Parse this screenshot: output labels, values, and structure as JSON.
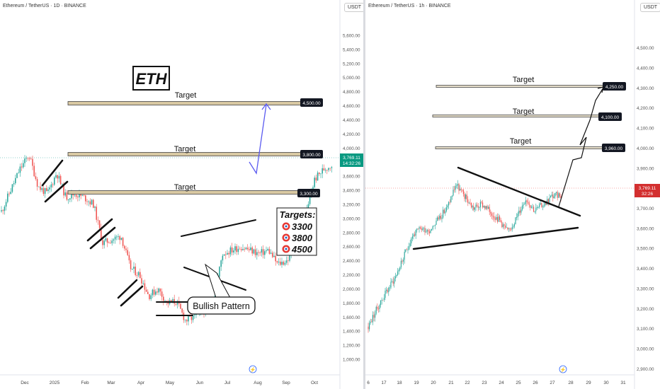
{
  "colors": {
    "up": "#26a69a",
    "down": "#ef5350",
    "target_fill": "#d9c9a3",
    "projection": "#5b5bf0",
    "green_label": "#089981",
    "red_label": "#d32f2f"
  },
  "left": {
    "title": "Ethereum / TetherUS · 1D · BINANCE",
    "currency": "USDT",
    "eth_label": "ETH",
    "target_label": "Target",
    "targets_heading": "Targets:",
    "targets_list": [
      "3300",
      "3800",
      "4500"
    ],
    "bullish_label": "Bullish Pattern",
    "price_label": "3,769.11",
    "countdown": "14:32:26",
    "target_prices": [
      "4,500.00",
      "3,800.00",
      "3,300.00"
    ],
    "lightning_icon": "⚡"
  },
  "right": {
    "title": "Ethereum / TetherUS · 1h · BINANCE",
    "currency": "USDT",
    "target_label": "Target",
    "price_label": "3,769.11",
    "countdown": "32:26",
    "target_prices": [
      "4,250.00",
      "4,100.00",
      "3,960.00"
    ],
    "lightning_icon": "⚡"
  },
  "chart_data": [
    {
      "type": "line",
      "title": "Ethereum / TetherUS · 1D · BINANCE",
      "interval": "1D",
      "x_ticks": [
        "Dec",
        "2025",
        "Feb",
        "Mar",
        "Apr",
        "May",
        "Jun",
        "Jul",
        "Aug",
        "Sep",
        "Oct"
      ],
      "y_ticks": [
        "1,000.00",
        "1,200.00",
        "1,400.00",
        "1,600.00",
        "1,800.00",
        "2,000.00",
        "2,200.00",
        "2,400.00",
        "2,600.00",
        "2,800.00",
        "3,000.00",
        "3,200.00",
        "3,400.00",
        "3,600.00",
        "3,800.00",
        "4,000.00",
        "4,200.00",
        "4,400.00",
        "4,600.00",
        "4,800.00",
        "5,000.00",
        "5,200.00",
        "5,400.00",
        "5,600.00"
      ],
      "ylim": [
        900,
        5750
      ],
      "series": [
        {
          "x": [
            "2024-11-18",
            "2024-11-25",
            "2024-12-02",
            "2024-12-09",
            "2024-12-16",
            "2024-12-23",
            "2024-12-30",
            "2025-01-06",
            "2025-01-13",
            "2025-01-20",
            "2025-01-27",
            "2025-02-03",
            "2025-02-10",
            "2025-02-17",
            "2025-02-24",
            "2025-03-03",
            "2025-03-10",
            "2025-03-17",
            "2025-03-24",
            "2025-03-31",
            "2025-04-07",
            "2025-04-14",
            "2025-04-21",
            "2025-04-28",
            "2025-05-05",
            "2025-05-12",
            "2025-05-19",
            "2025-05-26",
            "2025-06-02",
            "2025-06-09",
            "2025-06-16",
            "2025-06-23",
            "2025-06-30",
            "2025-07-07",
            "2025-07-14",
            "2025-07-21",
            "2025-07-28"
          ],
          "values": [
            3100,
            3400,
            3700,
            3900,
            3450,
            3350,
            3650,
            3300,
            3350,
            3300,
            3200,
            2650,
            2700,
            2750,
            2300,
            2200,
            1900,
            2000,
            1800,
            1820,
            1550,
            1600,
            1700,
            1800,
            2500,
            2550,
            2600,
            2550,
            2500,
            2550,
            2350,
            2400,
            2600,
            3000,
            3550,
            3700,
            3769
          ]
        }
      ],
      "targets": [
        4500,
        3800,
        3300
      ]
    },
    {
      "type": "line",
      "title": "Ethereum / TetherUS · 1h · BINANCE",
      "interval": "1h",
      "x_ticks": [
        "6",
        "17",
        "18",
        "19",
        "20",
        "21",
        "22",
        "23",
        "24",
        "25",
        "26",
        "27",
        "28",
        "29",
        "30",
        "31"
      ],
      "y_ticks": [
        "2,900.00",
        "3,000.00",
        "3,100.00",
        "3,200.00",
        "3,300.00",
        "3,400.00",
        "3,500.00",
        "3,600.00",
        "3,700.00",
        "3,800.00",
        "3,900.00",
        "4,000.00",
        "4,100.00",
        "4,200.00",
        "4,300.00",
        "4,400.00",
        "4,500.00"
      ],
      "ylim": [
        2880,
        4580
      ],
      "series": [
        {
          "x": [
            "16",
            "16.5",
            "17",
            "17.5",
            "18",
            "18.5",
            "19",
            "19.5",
            "20",
            "20.5",
            "21",
            "21.5",
            "22",
            "22.5",
            "23",
            "23.5",
            "24",
            "24.5",
            "25",
            "25.5",
            "26",
            "26.5",
            "27"
          ],
          "values": [
            3110,
            3200,
            3280,
            3350,
            3450,
            3560,
            3600,
            3590,
            3650,
            3700,
            3820,
            3760,
            3700,
            3720,
            3680,
            3640,
            3580,
            3660,
            3750,
            3690,
            3720,
            3760,
            3769
          ]
        }
      ],
      "targets": [
        4250,
        4100,
        3960
      ]
    }
  ]
}
